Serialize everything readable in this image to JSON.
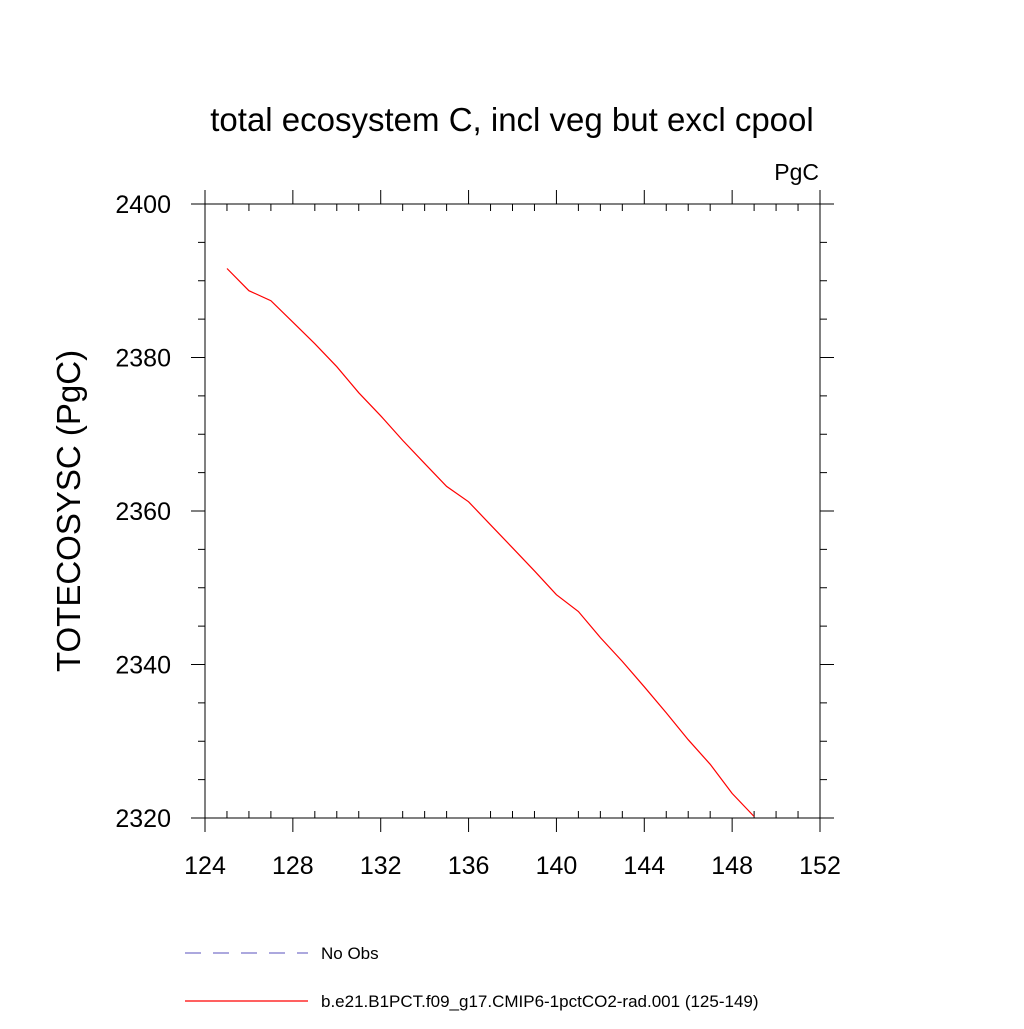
{
  "chart_data": {
    "type": "line",
    "title": "total ecosystem C, incl veg but excl cpool",
    "units_label": "PgC",
    "xlabel": "",
    "ylabel": "TOTECOSYSC  (PgC)",
    "xlim": [
      124,
      152
    ],
    "ylim": [
      2320,
      2400
    ],
    "x_ticks": [
      124,
      128,
      132,
      136,
      140,
      144,
      148,
      152
    ],
    "y_ticks": [
      2320,
      2340,
      2360,
      2380,
      2400
    ],
    "x_minor_step": 1,
    "y_minor_step": 5,
    "grid": false,
    "legend_position": "bottom",
    "series": [
      {
        "name": "No Obs",
        "color": "#7b74c9",
        "dash": "dashed",
        "x": [],
        "y": []
      },
      {
        "name": "b.e21.B1PCT.f09_g17.CMIP6-1pctCO2-rad.001 (125-149)",
        "color": "#ff0000",
        "dash": "solid",
        "x": [
          125,
          126,
          127,
          128,
          129,
          130,
          131,
          132,
          133,
          134,
          135,
          136,
          137,
          138,
          139,
          140,
          141,
          142,
          143,
          144,
          145,
          146,
          147,
          148,
          149
        ],
        "y": [
          2391.6,
          2388.7,
          2387.4,
          2384.6,
          2381.8,
          2378.8,
          2375.4,
          2372.4,
          2369.2,
          2366.2,
          2363.2,
          2361.2,
          2358.2,
          2355.2,
          2352.2,
          2349.1,
          2346.9,
          2343.5,
          2340.4,
          2337.1,
          2333.7,
          2330.2,
          2327.0,
          2323.2,
          2320.2
        ]
      }
    ]
  }
}
